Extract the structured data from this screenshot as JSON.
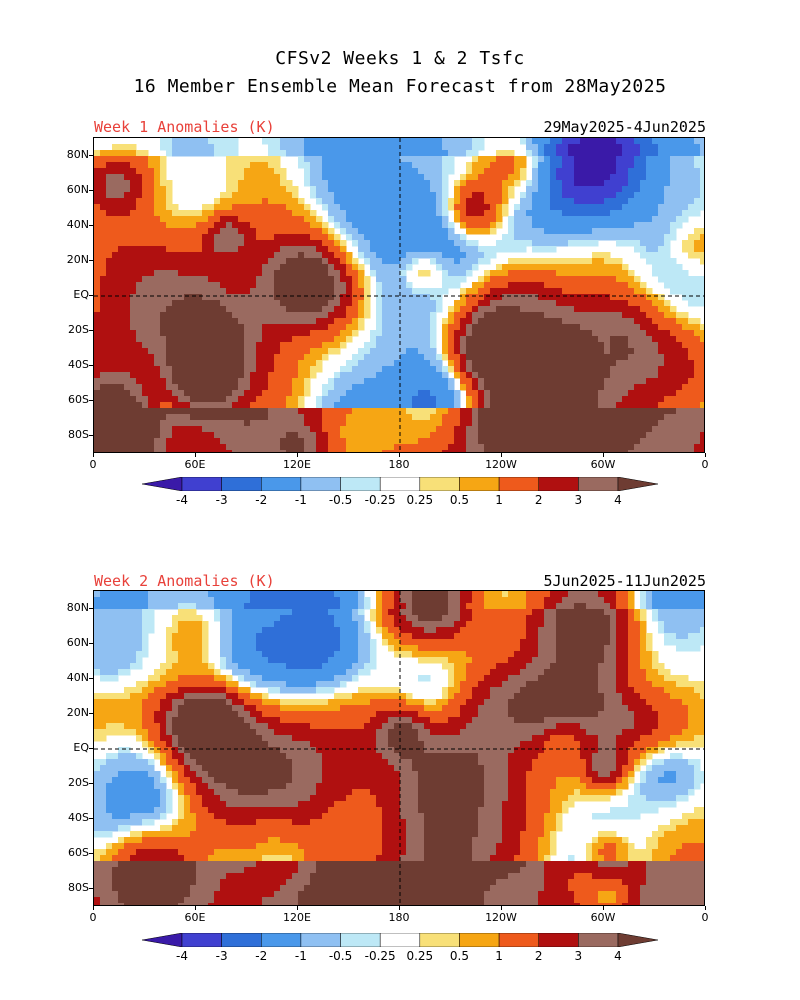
{
  "title_line1": "CFSv2 Weeks 1 & 2 Tsfc",
  "title_line2": "16 Member Ensemble Mean Forecast from 28May2025",
  "panels": [
    {
      "label": "Week 1 Anomalies (K)",
      "dates": "29May2025-4Jun2025"
    },
    {
      "label": "Week 2 Anomalies (K)",
      "dates": "5Jun2025-11Jun2025"
    }
  ],
  "lat_labels": [
    "80N",
    "60N",
    "40N",
    "20N",
    "EQ",
    "20S",
    "40S",
    "60S",
    "80S"
  ],
  "lat_values": [
    80,
    60,
    40,
    20,
    0,
    -20,
    -40,
    -60,
    -80
  ],
  "lon_labels": [
    "0",
    "60E",
    "120E",
    "180",
    "120W",
    "60W",
    "0"
  ],
  "lon_values": [
    0,
    60,
    120,
    180,
    240,
    300,
    360
  ],
  "colorbar": {
    "labels": [
      "-4",
      "-3",
      "-2",
      "-1",
      "-0.5",
      "-0.25",
      "0.25",
      "0.5",
      "1",
      "2",
      "3",
      "4"
    ],
    "colors": [
      "#3a1aa8",
      "#4040d0",
      "#2f6fd8",
      "#4a98ea",
      "#8fc0f2",
      "#bde8f6",
      "#ffffff",
      "#f8e078",
      "#f6a614",
      "#ee5a1c",
      "#b01010",
      "#9a6a60",
      "#6e3c32"
    ]
  }
}
